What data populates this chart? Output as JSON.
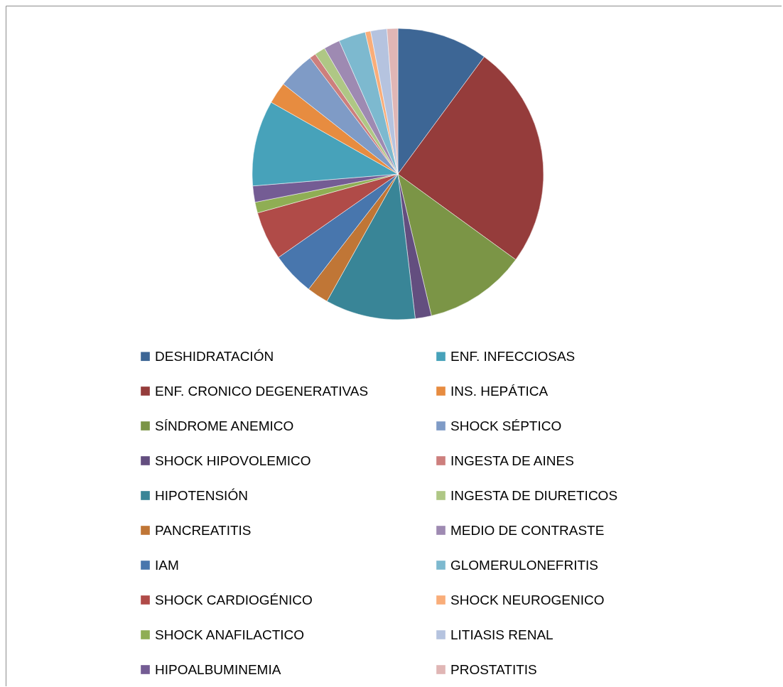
{
  "chart_data": {
    "type": "pie",
    "categories": [
      "DESHIDRATACIÓN",
      "ENF. CRONICO DEGENERATIVAS",
      "SÍNDROME  ANEMICO",
      "SHOCK HIPOVOLEMICO",
      "HIPOTENSIÓN",
      "PANCREATITIS",
      "IAM",
      "SHOCK CARDIOGÉNICO",
      "SHOCK ANAFILACTICO",
      "HIPOALBUMINEMIA",
      "ENF. INFECCIOSAS",
      "INS. HEPÁTICA",
      "SHOCK SÉPTICO",
      "INGESTA DE  AINES",
      "INGESTA DE DIURETICOS",
      "MEDIO DE CONTRASTE",
      "GLOMERULONEFRITIS",
      "SHOCK NEUROGENICO",
      "LITIASIS RENAL",
      "PROSTATITIS"
    ],
    "values": [
      10.1,
      24.9,
      11.3,
      1.8,
      10,
      2.4,
      4.8,
      5.4,
      1.2,
      1.8,
      9.5,
      2.4,
      4.1,
      0.7,
      1.2,
      1.8,
      3.0,
      0.6,
      1.8,
      1.2
    ],
    "colors": [
      "#3d6695",
      "#953c3b",
      "#7b9546",
      "#634e7f",
      "#398597",
      "#c07636",
      "#4876ad",
      "#b04b48",
      "#8fae54",
      "#745c94",
      "#47a2ba",
      "#e78c40",
      "#7f9bc6",
      "#cd7f7d",
      "#afc785",
      "#9e8ab2",
      "#7db9cf",
      "#f9ad79",
      "#b5c3df",
      "#e0b6b5"
    ],
    "legend": "bottom"
  }
}
